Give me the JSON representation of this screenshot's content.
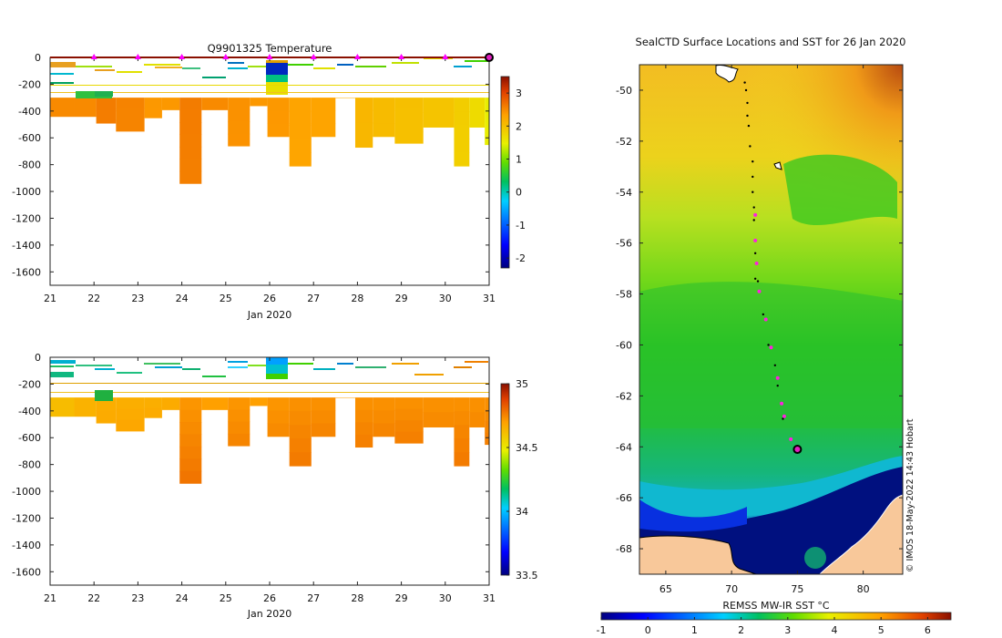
{
  "chart_data": [
    {
      "type": "heatmap",
      "id": "temp",
      "title": "Q9901325  Temperature",
      "xlabel": "Jan 2020",
      "xlim": [
        21,
        31
      ],
      "ylim": [
        -1700,
        0
      ],
      "xticks": [
        "21",
        "22",
        "23",
        "24",
        "25",
        "26",
        "27",
        "28",
        "29",
        "30",
        "31"
      ],
      "yticks": [
        "0",
        "-200",
        "-400",
        "-600",
        "-800",
        "-1000",
        "-1200",
        "-1400",
        "-1600"
      ],
      "colorbar": {
        "range": [
          -2.3,
          3.5
        ],
        "ticks": [
          "3",
          "2",
          "1",
          "0",
          "-1",
          "-2"
        ]
      },
      "markers_days": [
        22,
        23,
        24,
        25,
        26,
        27,
        28,
        29,
        30,
        31
      ],
      "profiles": [
        {
          "x0": 21.0,
          "x1": 21.55,
          "depth": 440,
          "deep_value": 2.5
        },
        {
          "x0": 21.55,
          "x1": 22.05,
          "depth": 440,
          "deep_value": 2.5
        },
        {
          "x0": 22.05,
          "x1": 22.5,
          "depth": 490,
          "deep_value": 2.6
        },
        {
          "x0": 22.5,
          "x1": 23.15,
          "depth": 550,
          "deep_value": 2.55
        },
        {
          "x0": 23.15,
          "x1": 23.55,
          "depth": 450,
          "deep_value": 2.4
        },
        {
          "x0": 23.55,
          "x1": 23.95,
          "depth": 390,
          "deep_value": 2.4
        },
        {
          "x0": 23.95,
          "x1": 24.45,
          "depth": 940,
          "deep_value": 2.6
        },
        {
          "x0": 24.45,
          "x1": 25.05,
          "depth": 390,
          "deep_value": 2.5
        },
        {
          "x0": 25.05,
          "x1": 25.55,
          "depth": 660,
          "deep_value": 2.45
        },
        {
          "x0": 25.55,
          "x1": 25.95,
          "depth": 360,
          "deep_value": 2.4
        },
        {
          "x0": 25.95,
          "x1": 26.45,
          "depth": 590,
          "deep_value": 2.4
        },
        {
          "x0": 26.45,
          "x1": 26.95,
          "depth": 810,
          "deep_value": 2.3
        },
        {
          "x0": 26.95,
          "x1": 27.5,
          "depth": 590,
          "deep_value": 2.3
        },
        {
          "x0": 27.5,
          "x1": 27.95,
          "depth": 300,
          "deep_value": 2.2
        },
        {
          "x0": 27.95,
          "x1": 28.35,
          "depth": 670,
          "deep_value": 2.1
        },
        {
          "x0": 28.35,
          "x1": 28.85,
          "depth": 590,
          "deep_value": 2.05
        },
        {
          "x0": 28.85,
          "x1": 29.5,
          "depth": 640,
          "deep_value": 2.0
        },
        {
          "x0": 29.5,
          "x1": 30.2,
          "depth": 520,
          "deep_value": 1.95
        },
        {
          "x0": 30.2,
          "x1": 30.55,
          "depth": 810,
          "deep_value": 1.85
        },
        {
          "x0": 30.55,
          "x1": 30.9,
          "depth": 520,
          "deep_value": 1.7
        },
        {
          "x0": 30.9,
          "x1": 31.05,
          "depth": 650,
          "deep_value": 1.5
        }
      ],
      "surface_value": 1.2
    },
    {
      "type": "heatmap",
      "id": "sal",
      "title": "",
      "xlabel": "Jan 2020",
      "xlim": [
        21,
        31
      ],
      "ylim": [
        -1700,
        0
      ],
      "xticks": [
        "21",
        "22",
        "23",
        "24",
        "25",
        "26",
        "27",
        "28",
        "29",
        "30",
        "31"
      ],
      "yticks": [
        "0",
        "-200",
        "-400",
        "-600",
        "-800",
        "-1000",
        "-1200",
        "-1400",
        "-1600"
      ],
      "colorbar": {
        "range": [
          33.5,
          35
        ],
        "ticks": [
          "35",
          "34.5",
          "34",
          "33.5"
        ]
      },
      "profiles": [
        {
          "x0": 21.0,
          "x1": 21.55,
          "depth": 440,
          "deep_value": 34.62
        },
        {
          "x0": 21.55,
          "x1": 22.05,
          "depth": 440,
          "deep_value": 34.65
        },
        {
          "x0": 22.05,
          "x1": 22.5,
          "depth": 490,
          "deep_value": 34.66
        },
        {
          "x0": 22.5,
          "x1": 23.15,
          "depth": 550,
          "deep_value": 34.66
        },
        {
          "x0": 23.15,
          "x1": 23.55,
          "depth": 450,
          "deep_value": 34.66
        },
        {
          "x0": 23.55,
          "x1": 23.95,
          "depth": 390,
          "deep_value": 34.67
        },
        {
          "x0": 23.95,
          "x1": 24.45,
          "depth": 940,
          "deep_value": 34.72
        },
        {
          "x0": 24.45,
          "x1": 25.05,
          "depth": 390,
          "deep_value": 34.7
        },
        {
          "x0": 25.05,
          "x1": 25.55,
          "depth": 660,
          "deep_value": 34.72
        },
        {
          "x0": 25.55,
          "x1": 25.95,
          "depth": 360,
          "deep_value": 34.7
        },
        {
          "x0": 25.95,
          "x1": 26.45,
          "depth": 590,
          "deep_value": 34.72
        },
        {
          "x0": 26.45,
          "x1": 26.95,
          "depth": 810,
          "deep_value": 34.73
        },
        {
          "x0": 26.95,
          "x1": 27.5,
          "depth": 590,
          "deep_value": 34.73
        },
        {
          "x0": 27.5,
          "x1": 27.95,
          "depth": 300,
          "deep_value": 34.7
        },
        {
          "x0": 27.95,
          "x1": 28.35,
          "depth": 670,
          "deep_value": 34.73
        },
        {
          "x0": 28.35,
          "x1": 28.85,
          "depth": 590,
          "deep_value": 34.73
        },
        {
          "x0": 28.85,
          "x1": 29.5,
          "depth": 640,
          "deep_value": 34.73
        },
        {
          "x0": 29.5,
          "x1": 30.2,
          "depth": 520,
          "deep_value": 34.73
        },
        {
          "x0": 30.2,
          "x1": 30.55,
          "depth": 810,
          "deep_value": 34.73
        },
        {
          "x0": 30.55,
          "x1": 30.9,
          "depth": 520,
          "deep_value": 34.73
        },
        {
          "x0": 30.9,
          "x1": 31.05,
          "depth": 650,
          "deep_value": 34.73
        }
      ],
      "surface_value": 34.15
    },
    {
      "type": "heatmap",
      "id": "sst",
      "title": "SealCTD Surface Locations and SST for 26 Jan 2020",
      "xlim": [
        63,
        83
      ],
      "ylim": [
        -69,
        -49
      ],
      "xticks": [
        "65",
        "70",
        "75",
        "80"
      ],
      "yticks": [
        "-50",
        "-52",
        "-54",
        "-56",
        "-58",
        "-60",
        "-62",
        "-64",
        "-66",
        "-68"
      ],
      "colorbar": {
        "label": "REMSS MW-IR SST °C",
        "range": [
          -1,
          6.5
        ],
        "ticks": [
          "-1",
          "0",
          "1",
          "2",
          "3",
          "4",
          "5",
          "6"
        ]
      },
      "track": [
        {
          "lon": 71.0,
          "lat": -49.7
        },
        {
          "lon": 71.1,
          "lat": -50.0
        },
        {
          "lon": 71.2,
          "lat": -50.5
        },
        {
          "lon": 71.2,
          "lat": -51.0
        },
        {
          "lon": 71.3,
          "lat": -51.4
        },
        {
          "lon": 71.4,
          "lat": -52.2
        },
        {
          "lon": 71.6,
          "lat": -52.8
        },
        {
          "lon": 71.6,
          "lat": -53.4
        },
        {
          "lon": 71.6,
          "lat": -54.0
        },
        {
          "lon": 71.7,
          "lat": -54.6
        },
        {
          "lon": 71.7,
          "lat": -55.1
        },
        {
          "lon": 71.8,
          "lat": -56.4
        },
        {
          "lon": 71.8,
          "lat": -57.4
        },
        {
          "lon": 72.0,
          "lat": -57.5
        },
        {
          "lon": 72.4,
          "lat": -58.8
        },
        {
          "lon": 72.8,
          "lat": -60.0
        },
        {
          "lon": 73.3,
          "lat": -60.8
        },
        {
          "lon": 73.5,
          "lat": -61.6
        },
        {
          "lon": 73.9,
          "lat": -62.9
        },
        {
          "lon": 74.5,
          "lat": -63.7
        }
      ],
      "pink_positions": [
        {
          "lon": 71.8,
          "lat": -54.9
        },
        {
          "lon": 71.8,
          "lat": -55.9
        },
        {
          "lon": 71.9,
          "lat": -56.8
        },
        {
          "lon": 72.1,
          "lat": -57.9
        },
        {
          "lon": 72.6,
          "lat": -59.0
        },
        {
          "lon": 73.0,
          "lat": -60.1
        },
        {
          "lon": 73.5,
          "lat": -61.3
        },
        {
          "lon": 73.8,
          "lat": -62.3
        },
        {
          "lon": 74.0,
          "lat": -62.8
        },
        {
          "lon": 74.5,
          "lat": -63.7
        }
      ],
      "current_position": {
        "lon": 75.0,
        "lat": -64.1
      },
      "watermark": "© IMOS 18-May-2022 14:43 Hobart"
    }
  ]
}
